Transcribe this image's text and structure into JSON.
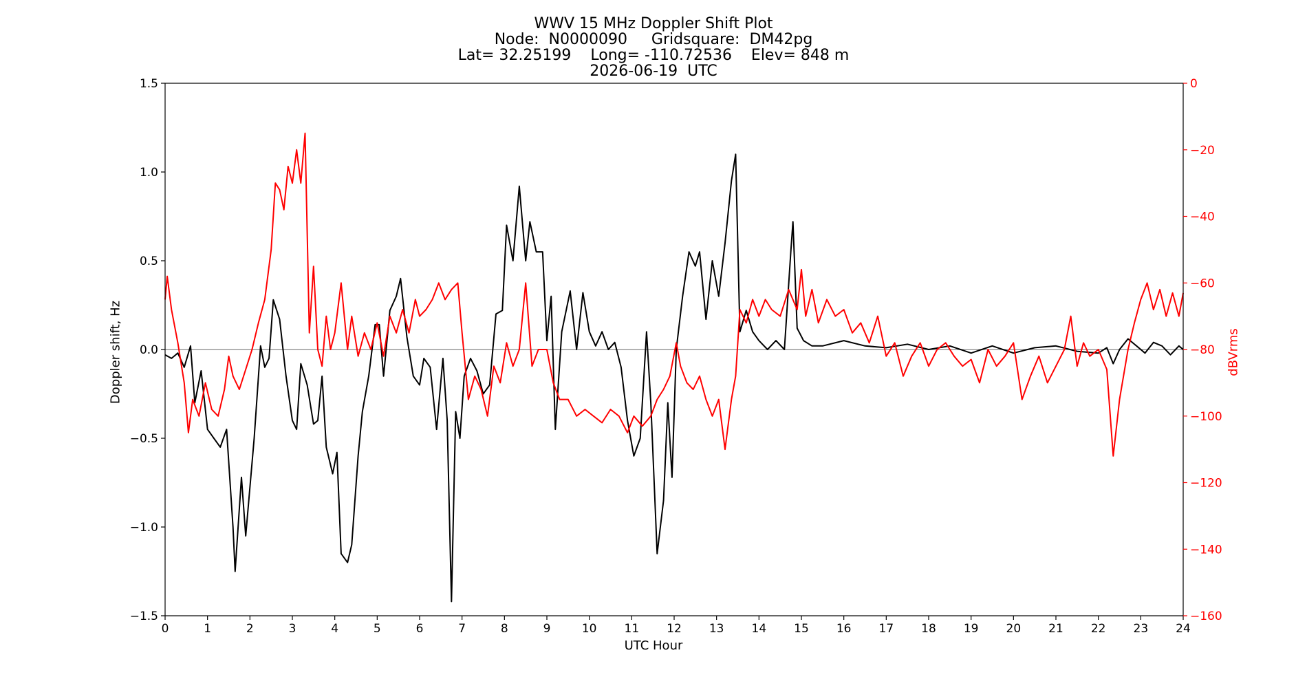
{
  "chart_data": {
    "type": "line",
    "title_lines": [
      "WWV 15 MHz Doppler Shift Plot",
      "Node:  N0000090     Gridsquare:  DM42pg",
      "Lat= 32.25199    Long= -110.72536    Elev= 848 m",
      "2026-06-19  UTC"
    ],
    "xlabel": "UTC Hour",
    "ylabel_left": "Doppler shift, Hz",
    "ylabel_right": "dBVrms",
    "xlim": [
      0,
      24
    ],
    "ylim_left": [
      -1.5,
      1.5
    ],
    "ylim_right": [
      -160,
      0
    ],
    "x_ticks": [
      "0",
      "1",
      "2",
      "3",
      "4",
      "5",
      "6",
      "7",
      "8",
      "9",
      "10",
      "11",
      "12",
      "13",
      "14",
      "15",
      "16",
      "17",
      "18",
      "19",
      "20",
      "21",
      "22",
      "23",
      "24"
    ],
    "y_ticks_left": [
      "1.5",
      "1.0",
      "0.5",
      "0.0",
      "−0.5",
      "−1.0",
      "−1.5"
    ],
    "y_ticks_right": [
      "0",
      "−20",
      "−40",
      "−60",
      "−80",
      "−100",
      "−120",
      "−140",
      "−160"
    ],
    "zero_line": 0.0,
    "grid": false,
    "series": [
      {
        "axis": "left",
        "color": "#000000",
        "points": [
          [
            0,
            -0.03
          ],
          [
            0.15,
            -0.05
          ],
          [
            0.3,
            -0.02
          ],
          [
            0.45,
            -0.1
          ],
          [
            0.6,
            0.02
          ],
          [
            0.7,
            -0.3
          ],
          [
            0.85,
            -0.12
          ],
          [
            1.0,
            -0.45
          ],
          [
            1.15,
            -0.5
          ],
          [
            1.3,
            -0.55
          ],
          [
            1.45,
            -0.45
          ],
          [
            1.6,
            -1.0
          ],
          [
            1.65,
            -1.25
          ],
          [
            1.8,
            -0.72
          ],
          [
            1.9,
            -1.05
          ],
          [
            2.1,
            -0.5
          ],
          [
            2.25,
            0.02
          ],
          [
            2.35,
            -0.1
          ],
          [
            2.45,
            -0.05
          ],
          [
            2.55,
            0.28
          ],
          [
            2.7,
            0.17
          ],
          [
            2.85,
            -0.15
          ],
          [
            3.0,
            -0.4
          ],
          [
            3.1,
            -0.45
          ],
          [
            3.2,
            -0.08
          ],
          [
            3.35,
            -0.2
          ],
          [
            3.5,
            -0.42
          ],
          [
            3.6,
            -0.4
          ],
          [
            3.7,
            -0.15
          ],
          [
            3.8,
            -0.55
          ],
          [
            3.95,
            -0.7
          ],
          [
            4.05,
            -0.58
          ],
          [
            4.15,
            -1.15
          ],
          [
            4.3,
            -1.2
          ],
          [
            4.4,
            -1.1
          ],
          [
            4.55,
            -0.6
          ],
          [
            4.65,
            -0.35
          ],
          [
            4.8,
            -0.15
          ],
          [
            4.95,
            0.14
          ],
          [
            5.05,
            0.14
          ],
          [
            5.15,
            -0.15
          ],
          [
            5.3,
            0.22
          ],
          [
            5.45,
            0.3
          ],
          [
            5.55,
            0.4
          ],
          [
            5.7,
            0.07
          ],
          [
            5.85,
            -0.15
          ],
          [
            6.0,
            -0.2
          ],
          [
            6.1,
            -0.05
          ],
          [
            6.25,
            -0.1
          ],
          [
            6.4,
            -0.45
          ],
          [
            6.55,
            -0.05
          ],
          [
            6.65,
            -0.4
          ],
          [
            6.75,
            -1.42
          ],
          [
            6.85,
            -0.35
          ],
          [
            6.95,
            -0.5
          ],
          [
            7.05,
            -0.15
          ],
          [
            7.2,
            -0.05
          ],
          [
            7.35,
            -0.12
          ],
          [
            7.5,
            -0.25
          ],
          [
            7.65,
            -0.2
          ],
          [
            7.8,
            0.2
          ],
          [
            7.95,
            0.22
          ],
          [
            8.05,
            0.7
          ],
          [
            8.2,
            0.5
          ],
          [
            8.35,
            0.92
          ],
          [
            8.5,
            0.5
          ],
          [
            8.6,
            0.72
          ],
          [
            8.75,
            0.55
          ],
          [
            8.9,
            0.55
          ],
          [
            9.0,
            0.05
          ],
          [
            9.1,
            0.3
          ],
          [
            9.2,
            -0.45
          ],
          [
            9.35,
            0.1
          ],
          [
            9.55,
            0.33
          ],
          [
            9.7,
            0.0
          ],
          [
            9.85,
            0.32
          ],
          [
            10.0,
            0.1
          ],
          [
            10.15,
            0.02
          ],
          [
            10.3,
            0.1
          ],
          [
            10.45,
            0.0
          ],
          [
            10.6,
            0.04
          ],
          [
            10.75,
            -0.1
          ],
          [
            10.9,
            -0.4
          ],
          [
            11.05,
            -0.6
          ],
          [
            11.2,
            -0.5
          ],
          [
            11.35,
            0.1
          ],
          [
            11.45,
            -0.3
          ],
          [
            11.6,
            -1.15
          ],
          [
            11.75,
            -0.85
          ],
          [
            11.85,
            -0.3
          ],
          [
            11.95,
            -0.72
          ],
          [
            12.05,
            0.0
          ],
          [
            12.2,
            0.3
          ],
          [
            12.35,
            0.55
          ],
          [
            12.5,
            0.47
          ],
          [
            12.6,
            0.55
          ],
          [
            12.75,
            0.17
          ],
          [
            12.9,
            0.5
          ],
          [
            13.05,
            0.3
          ],
          [
            13.2,
            0.6
          ],
          [
            13.35,
            0.95
          ],
          [
            13.45,
            1.1
          ],
          [
            13.55,
            0.1
          ],
          [
            13.7,
            0.22
          ],
          [
            13.85,
            0.1
          ],
          [
            14.0,
            0.05
          ],
          [
            14.2,
            0.0
          ],
          [
            14.4,
            0.05
          ],
          [
            14.6,
            0.0
          ],
          [
            14.75,
            0.55
          ],
          [
            14.8,
            0.72
          ],
          [
            14.9,
            0.12
          ],
          [
            15.05,
            0.05
          ],
          [
            15.25,
            0.02
          ],
          [
            15.5,
            0.02
          ],
          [
            16.0,
            0.05
          ],
          [
            16.5,
            0.02
          ],
          [
            17.0,
            0.01
          ],
          [
            17.5,
            0.03
          ],
          [
            18.0,
            0.0
          ],
          [
            18.5,
            0.02
          ],
          [
            19.0,
            -0.02
          ],
          [
            19.5,
            0.02
          ],
          [
            20.0,
            -0.02
          ],
          [
            20.5,
            0.01
          ],
          [
            21.0,
            0.02
          ],
          [
            21.5,
            -0.01
          ],
          [
            22.0,
            -0.02
          ],
          [
            22.2,
            0.01
          ],
          [
            22.35,
            -0.08
          ],
          [
            22.5,
            0.0
          ],
          [
            22.7,
            0.06
          ],
          [
            22.9,
            0.02
          ],
          [
            23.1,
            -0.02
          ],
          [
            23.3,
            0.04
          ],
          [
            23.5,
            0.02
          ],
          [
            23.7,
            -0.03
          ],
          [
            23.9,
            0.02
          ],
          [
            24.0,
            0.0
          ]
        ]
      },
      {
        "axis": "right",
        "color": "#ff0000",
        "points": [
          [
            0,
            -65
          ],
          [
            0.05,
            -58
          ],
          [
            0.15,
            -68
          ],
          [
            0.3,
            -78
          ],
          [
            0.45,
            -90
          ],
          [
            0.55,
            -105
          ],
          [
            0.65,
            -95
          ],
          [
            0.8,
            -100
          ],
          [
            0.95,
            -90
          ],
          [
            1.1,
            -98
          ],
          [
            1.25,
            -100
          ],
          [
            1.4,
            -92
          ],
          [
            1.5,
            -82
          ],
          [
            1.6,
            -88
          ],
          [
            1.75,
            -92
          ],
          [
            1.9,
            -86
          ],
          [
            2.05,
            -80
          ],
          [
            2.2,
            -72
          ],
          [
            2.35,
            -65
          ],
          [
            2.5,
            -50
          ],
          [
            2.6,
            -30
          ],
          [
            2.7,
            -32
          ],
          [
            2.8,
            -38
          ],
          [
            2.9,
            -25
          ],
          [
            3.0,
            -30
          ],
          [
            3.1,
            -20
          ],
          [
            3.2,
            -30
          ],
          [
            3.3,
            -15
          ],
          [
            3.4,
            -75
          ],
          [
            3.5,
            -55
          ],
          [
            3.6,
            -80
          ],
          [
            3.7,
            -85
          ],
          [
            3.8,
            -70
          ],
          [
            3.9,
            -80
          ],
          [
            4.0,
            -75
          ],
          [
            4.15,
            -60
          ],
          [
            4.3,
            -80
          ],
          [
            4.4,
            -70
          ],
          [
            4.55,
            -82
          ],
          [
            4.7,
            -75
          ],
          [
            4.85,
            -80
          ],
          [
            5.0,
            -72
          ],
          [
            5.15,
            -82
          ],
          [
            5.3,
            -70
          ],
          [
            5.45,
            -75
          ],
          [
            5.6,
            -68
          ],
          [
            5.75,
            -75
          ],
          [
            5.9,
            -65
          ],
          [
            6.0,
            -70
          ],
          [
            6.15,
            -68
          ],
          [
            6.3,
            -65
          ],
          [
            6.45,
            -60
          ],
          [
            6.6,
            -65
          ],
          [
            6.75,
            -62
          ],
          [
            6.9,
            -60
          ],
          [
            7.0,
            -75
          ],
          [
            7.15,
            -95
          ],
          [
            7.3,
            -88
          ],
          [
            7.45,
            -92
          ],
          [
            7.6,
            -100
          ],
          [
            7.75,
            -85
          ],
          [
            7.9,
            -90
          ],
          [
            8.05,
            -78
          ],
          [
            8.2,
            -85
          ],
          [
            8.35,
            -80
          ],
          [
            8.5,
            -60
          ],
          [
            8.65,
            -85
          ],
          [
            8.8,
            -80
          ],
          [
            9.0,
            -80
          ],
          [
            9.15,
            -90
          ],
          [
            9.3,
            -95
          ],
          [
            9.5,
            -95
          ],
          [
            9.7,
            -100
          ],
          [
            9.9,
            -98
          ],
          [
            10.1,
            -100
          ],
          [
            10.3,
            -102
          ],
          [
            10.5,
            -98
          ],
          [
            10.7,
            -100
          ],
          [
            10.9,
            -105
          ],
          [
            11.05,
            -100
          ],
          [
            11.25,
            -103
          ],
          [
            11.45,
            -100
          ],
          [
            11.6,
            -95
          ],
          [
            11.75,
            -92
          ],
          [
            11.9,
            -88
          ],
          [
            12.05,
            -78
          ],
          [
            12.15,
            -85
          ],
          [
            12.3,
            -90
          ],
          [
            12.45,
            -92
          ],
          [
            12.6,
            -88
          ],
          [
            12.75,
            -95
          ],
          [
            12.9,
            -100
          ],
          [
            13.05,
            -95
          ],
          [
            13.2,
            -110
          ],
          [
            13.35,
            -95
          ],
          [
            13.45,
            -88
          ],
          [
            13.55,
            -68
          ],
          [
            13.7,
            -72
          ],
          [
            13.85,
            -65
          ],
          [
            14.0,
            -70
          ],
          [
            14.15,
            -65
          ],
          [
            14.3,
            -68
          ],
          [
            14.5,
            -70
          ],
          [
            14.7,
            -62
          ],
          [
            14.9,
            -68
          ],
          [
            15.0,
            -56
          ],
          [
            15.1,
            -70
          ],
          [
            15.25,
            -62
          ],
          [
            15.4,
            -72
          ],
          [
            15.6,
            -65
          ],
          [
            15.8,
            -70
          ],
          [
            16.0,
            -68
          ],
          [
            16.2,
            -75
          ],
          [
            16.4,
            -72
          ],
          [
            16.6,
            -78
          ],
          [
            16.8,
            -70
          ],
          [
            17.0,
            -82
          ],
          [
            17.2,
            -78
          ],
          [
            17.4,
            -88
          ],
          [
            17.6,
            -82
          ],
          [
            17.8,
            -78
          ],
          [
            18.0,
            -85
          ],
          [
            18.2,
            -80
          ],
          [
            18.4,
            -78
          ],
          [
            18.6,
            -82
          ],
          [
            18.8,
            -85
          ],
          [
            19.0,
            -83
          ],
          [
            19.2,
            -90
          ],
          [
            19.4,
            -80
          ],
          [
            19.6,
            -85
          ],
          [
            19.8,
            -82
          ],
          [
            20.0,
            -78
          ],
          [
            20.2,
            -95
          ],
          [
            20.4,
            -88
          ],
          [
            20.6,
            -82
          ],
          [
            20.8,
            -90
          ],
          [
            21.0,
            -85
          ],
          [
            21.2,
            -80
          ],
          [
            21.35,
            -70
          ],
          [
            21.5,
            -85
          ],
          [
            21.65,
            -78
          ],
          [
            21.8,
            -82
          ],
          [
            22.0,
            -80
          ],
          [
            22.2,
            -86
          ],
          [
            22.35,
            -112
          ],
          [
            22.5,
            -95
          ],
          [
            22.7,
            -80
          ],
          [
            22.85,
            -72
          ],
          [
            23.0,
            -65
          ],
          [
            23.15,
            -60
          ],
          [
            23.3,
            -68
          ],
          [
            23.45,
            -62
          ],
          [
            23.6,
            -70
          ],
          [
            23.75,
            -63
          ],
          [
            23.9,
            -70
          ],
          [
            24.0,
            -63
          ]
        ]
      }
    ]
  }
}
